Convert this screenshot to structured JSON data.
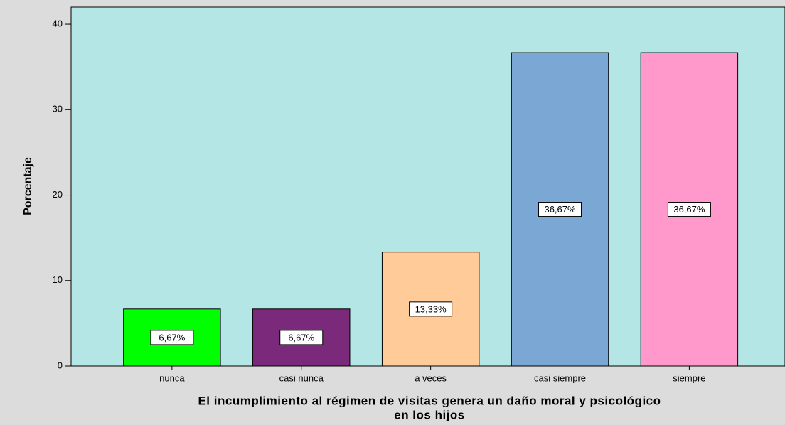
{
  "chart_data": {
    "type": "bar",
    "categories": [
      "nunca",
      "casi nunca",
      "a veces",
      "casi siempre",
      "siempre"
    ],
    "values": [
      6.67,
      6.67,
      13.33,
      36.67,
      36.67
    ],
    "value_labels": [
      "6,67%",
      "6,67%",
      "13,33%",
      "36,67%",
      "36,67%"
    ],
    "colors": [
      "#00ff00",
      "#7b2a7b",
      "#ffcc99",
      "#7ba7d4",
      "#ff99cc"
    ],
    "ylabel": "Porcentaje",
    "xlabel": [
      "El incumplimiento al régimen de visitas genera un daño  moral y psicológico",
      "en  los hijos"
    ],
    "ylim": [
      0,
      42
    ],
    "yticks": [
      0,
      10,
      20,
      30,
      40
    ]
  }
}
